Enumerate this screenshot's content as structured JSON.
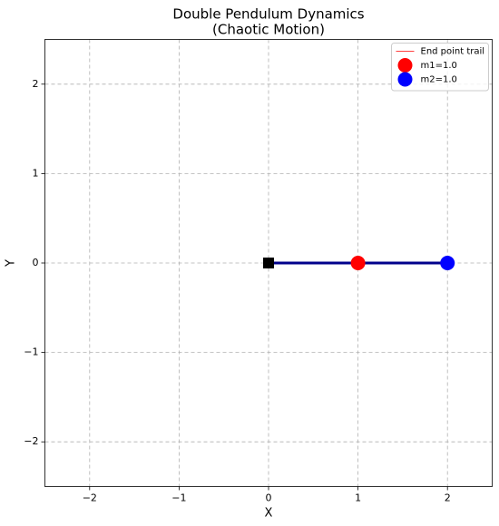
{
  "chart_data": {
    "type": "scatter",
    "title": [
      "Double Pendulum Dynamics",
      "(Chaotic Motion)"
    ],
    "xlabel": "X",
    "ylabel": "Y",
    "xlim": [
      -2.5,
      2.5
    ],
    "ylim": [
      -2.5,
      2.5
    ],
    "xticks": [
      {
        "value": -2,
        "label": "−2"
      },
      {
        "value": -1,
        "label": "−1"
      },
      0,
      1,
      2
    ],
    "yticks": [
      {
        "value": -2,
        "label": "−2"
      },
      {
        "value": -1,
        "label": "−1"
      },
      0,
      1,
      2
    ],
    "grid": true,
    "legend": "upper right",
    "pivot": {
      "x": 0,
      "y": 0,
      "color": "#000000"
    },
    "rod": {
      "x": [
        0,
        1,
        2
      ],
      "y": [
        0,
        0,
        0
      ],
      "color": "#00008b"
    },
    "series": [
      {
        "name": "End point trail",
        "kind": "line",
        "color": "#ff0000",
        "x": [],
        "y": []
      },
      {
        "name": "m1=1.0",
        "kind": "point",
        "color": "#ff0000",
        "x": [
          1
        ],
        "y": [
          0
        ]
      },
      {
        "name": "m2=1.0",
        "kind": "point",
        "color": "#0000ff",
        "x": [
          2
        ],
        "y": [
          0
        ]
      }
    ]
  }
}
